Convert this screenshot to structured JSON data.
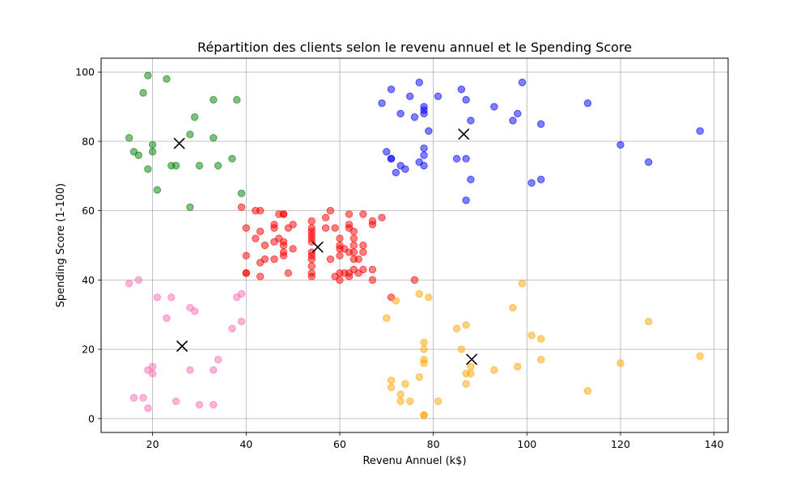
{
  "chart_data": {
    "type": "scatter",
    "title": "Répartition des clients selon le revenu annuel et le Spending Score",
    "xlabel": "Revenu Annuel (k$)",
    "ylabel": "Spending Score (1-100)",
    "xlim": [
      9,
      143
    ],
    "ylim": [
      -4,
      104
    ],
    "xticks": [
      20,
      40,
      60,
      80,
      100,
      120,
      140
    ],
    "yticks": [
      0,
      20,
      40,
      60,
      80,
      100
    ],
    "grid": true,
    "series": [
      {
        "color": "#008000",
        "points": [
          [
            15,
            81
          ],
          [
            16,
            77
          ],
          [
            17,
            76
          ],
          [
            18,
            94
          ],
          [
            19,
            99
          ],
          [
            19,
            72
          ],
          [
            20,
            77
          ],
          [
            20,
            79
          ],
          [
            21,
            66
          ],
          [
            23,
            98
          ],
          [
            24,
            73
          ],
          [
            25,
            73
          ],
          [
            28,
            82
          ],
          [
            28,
            61
          ],
          [
            29,
            87
          ],
          [
            30,
            73
          ],
          [
            33,
            92
          ],
          [
            33,
            81
          ],
          [
            34,
            73
          ],
          [
            37,
            75
          ],
          [
            38,
            92
          ],
          [
            39,
            65
          ]
        ]
      },
      {
        "color": "#ff69b4",
        "points": [
          [
            15,
            39
          ],
          [
            16,
            6
          ],
          [
            17,
            40
          ],
          [
            18,
            6
          ],
          [
            19,
            3
          ],
          [
            19,
            14
          ],
          [
            20,
            15
          ],
          [
            20,
            13
          ],
          [
            21,
            35
          ],
          [
            23,
            29
          ],
          [
            24,
            35
          ],
          [
            25,
            5
          ],
          [
            28,
            32
          ],
          [
            28,
            14
          ],
          [
            29,
            31
          ],
          [
            30,
            4
          ],
          [
            33,
            4
          ],
          [
            33,
            14
          ],
          [
            34,
            17
          ],
          [
            37,
            26
          ],
          [
            38,
            35
          ],
          [
            39,
            36
          ],
          [
            39,
            28
          ]
        ]
      },
      {
        "color": "#ff0000",
        "points": [
          [
            39,
            61
          ],
          [
            40,
            55
          ],
          [
            40,
            47
          ],
          [
            40,
            42
          ],
          [
            40,
            42
          ],
          [
            42,
            52
          ],
          [
            42,
            60
          ],
          [
            43,
            54
          ],
          [
            43,
            60
          ],
          [
            43,
            45
          ],
          [
            43,
            41
          ],
          [
            44,
            50
          ],
          [
            44,
            46
          ],
          [
            46,
            51
          ],
          [
            46,
            46
          ],
          [
            46,
            56
          ],
          [
            46,
            55
          ],
          [
            47,
            52
          ],
          [
            47,
            59
          ],
          [
            48,
            51
          ],
          [
            48,
            59
          ],
          [
            48,
            50
          ],
          [
            48,
            48
          ],
          [
            48,
            59
          ],
          [
            48,
            47
          ],
          [
            49,
            55
          ],
          [
            49,
            42
          ],
          [
            50,
            49
          ],
          [
            50,
            56
          ],
          [
            54,
            47
          ],
          [
            54,
            54
          ],
          [
            54,
            53
          ],
          [
            54,
            48
          ],
          [
            54,
            52
          ],
          [
            54,
            42
          ],
          [
            54,
            51
          ],
          [
            54,
            55
          ],
          [
            54,
            41
          ],
          [
            54,
            44
          ],
          [
            54,
            57
          ],
          [
            54,
            46
          ],
          [
            57,
            58
          ],
          [
            57,
            55
          ],
          [
            58,
            60
          ],
          [
            58,
            46
          ],
          [
            59,
            55
          ],
          [
            59,
            41
          ],
          [
            60,
            49
          ],
          [
            60,
            40
          ],
          [
            60,
            42
          ],
          [
            60,
            52
          ],
          [
            60,
            47
          ],
          [
            60,
            50
          ],
          [
            61,
            42
          ],
          [
            61,
            49
          ],
          [
            62,
            41
          ],
          [
            62,
            48
          ],
          [
            62,
            59
          ],
          [
            62,
            55
          ],
          [
            62,
            56
          ],
          [
            62,
            42
          ],
          [
            63,
            50
          ],
          [
            63,
            46
          ],
          [
            63,
            43
          ],
          [
            63,
            48
          ],
          [
            63,
            52
          ],
          [
            63,
            54
          ],
          [
            64,
            42
          ],
          [
            64,
            46
          ],
          [
            65,
            48
          ],
          [
            65,
            50
          ],
          [
            65,
            43
          ],
          [
            65,
            59
          ],
          [
            67,
            43
          ],
          [
            67,
            57
          ],
          [
            67,
            56
          ],
          [
            67,
            40
          ],
          [
            69,
            58
          ],
          [
            71,
            35
          ],
          [
            76,
            40
          ]
        ]
      },
      {
        "color": "#0000ff",
        "points": [
          [
            69,
            91
          ],
          [
            70,
            77
          ],
          [
            71,
            95
          ],
          [
            71,
            75
          ],
          [
            71,
            75
          ],
          [
            72,
            71
          ],
          [
            73,
            88
          ],
          [
            73,
            73
          ],
          [
            74,
            72
          ],
          [
            75,
            93
          ],
          [
            76,
            87
          ],
          [
            77,
            97
          ],
          [
            77,
            74
          ],
          [
            78,
            90
          ],
          [
            78,
            88
          ],
          [
            78,
            76
          ],
          [
            78,
            89
          ],
          [
            78,
            78
          ],
          [
            78,
            73
          ],
          [
            79,
            83
          ],
          [
            81,
            93
          ],
          [
            85,
            75
          ],
          [
            86,
            95
          ],
          [
            87,
            63
          ],
          [
            87,
            75
          ],
          [
            87,
            92
          ],
          [
            88,
            86
          ],
          [
            88,
            69
          ],
          [
            93,
            90
          ],
          [
            97,
            86
          ],
          [
            98,
            88
          ],
          [
            99,
            97
          ],
          [
            101,
            68
          ],
          [
            103,
            85
          ],
          [
            103,
            69
          ],
          [
            113,
            91
          ],
          [
            120,
            79
          ],
          [
            126,
            74
          ],
          [
            137,
            83
          ]
        ]
      },
      {
        "color": "#ffa500",
        "points": [
          [
            70,
            29
          ],
          [
            71,
            11
          ],
          [
            71,
            9
          ],
          [
            72,
            34
          ],
          [
            73,
            5
          ],
          [
            73,
            7
          ],
          [
            74,
            10
          ],
          [
            75,
            5
          ],
          [
            77,
            12
          ],
          [
            77,
            36
          ],
          [
            78,
            22
          ],
          [
            78,
            17
          ],
          [
            78,
            20
          ],
          [
            78,
            16
          ],
          [
            78,
            1
          ],
          [
            78,
            1
          ],
          [
            79,
            35
          ],
          [
            81,
            5
          ],
          [
            85,
            26
          ],
          [
            86,
            20
          ],
          [
            87,
            27
          ],
          [
            87,
            13
          ],
          [
            87,
            10
          ],
          [
            88,
            13
          ],
          [
            88,
            15
          ],
          [
            93,
            14
          ],
          [
            97,
            32
          ],
          [
            98,
            15
          ],
          [
            99,
            39
          ],
          [
            101,
            24
          ],
          [
            103,
            17
          ],
          [
            103,
            23
          ],
          [
            113,
            8
          ],
          [
            120,
            16
          ],
          [
            126,
            28
          ],
          [
            137,
            18
          ]
        ]
      }
    ],
    "centroids": [
      [
        25.7,
        79.4
      ],
      [
        26.3,
        20.9
      ],
      [
        55.3,
        49.5
      ],
      [
        86.5,
        82.1
      ],
      [
        88.2,
        17.1
      ]
    ]
  }
}
